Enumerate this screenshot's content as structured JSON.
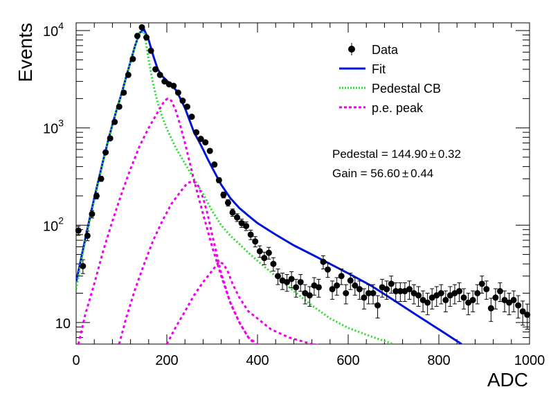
{
  "chart_data": {
    "type": "scatter",
    "xlabel": "ADC",
    "ylabel": "Events",
    "xlim": [
      0,
      1000
    ],
    "ylim": [
      6,
      12000
    ],
    "yscale": "log",
    "grid": false,
    "legend_placement": "top-right",
    "x_ticks": [
      "0",
      "200",
      "400",
      "600",
      "800",
      "1000"
    ],
    "y_ticks": [
      {
        "value": 10,
        "label": "10"
      },
      {
        "value": 100,
        "label": "10",
        "sup": "2"
      },
      {
        "value": 1000,
        "label": "10",
        "sup": "3"
      },
      {
        "value": 10000,
        "label": "10",
        "sup": "4"
      }
    ],
    "legend": [
      {
        "label": "Data",
        "style": "marker",
        "color": "#000000"
      },
      {
        "label": "Fit",
        "style": "solid",
        "color": "#0015d6"
      },
      {
        "label": "Pedestal CB",
        "style": "dotted",
        "color": "#22dd22"
      },
      {
        "label": "p.e. peak",
        "style": "dashed",
        "color": "#ee00ee"
      }
    ],
    "annotations": [
      {
        "text": "Pedestal = 144.90",
        "pm": "±",
        "err": "0.32"
      },
      {
        "text": "Gain = 56.60",
        "pm": "±",
        "err": "0.44"
      }
    ],
    "colors": {
      "data": "#000000",
      "fit": "#0015d6",
      "pedestal": "#22dd22",
      "pe_peak": "#ee00ee"
    },
    "series": [
      {
        "name": "Data",
        "points": [
          [
            5,
            88
          ],
          [
            15,
            38
          ],
          [
            25,
            78
          ],
          [
            35,
            130
          ],
          [
            45,
            200
          ],
          [
            55,
            300
          ],
          [
            65,
            560
          ],
          [
            75,
            780
          ],
          [
            85,
            1150
          ],
          [
            95,
            1650
          ],
          [
            105,
            2300
          ],
          [
            115,
            3500
          ],
          [
            125,
            5100
          ],
          [
            135,
            8800
          ],
          [
            145,
            10800
          ],
          [
            155,
            8500
          ],
          [
            165,
            6200
          ],
          [
            175,
            4000
          ],
          [
            185,
            3500
          ],
          [
            195,
            3000
          ],
          [
            205,
            2800
          ],
          [
            215,
            2700
          ],
          [
            225,
            2300
          ],
          [
            235,
            1900
          ],
          [
            245,
            1650
          ],
          [
            255,
            1300
          ],
          [
            265,
            900
          ],
          [
            275,
            770
          ],
          [
            285,
            710
          ],
          [
            295,
            580
          ],
          [
            305,
            420
          ],
          [
            315,
            290
          ],
          [
            325,
            205
          ],
          [
            335,
            170
          ],
          [
            345,
            135
          ],
          [
            355,
            120
          ],
          [
            365,
            105
          ],
          [
            375,
            98
          ],
          [
            385,
            80
          ],
          [
            395,
            68
          ],
          [
            405,
            54
          ],
          [
            415,
            46
          ],
          [
            425,
            52
          ],
          [
            435,
            40
          ],
          [
            445,
            30
          ],
          [
            455,
            27
          ],
          [
            465,
            26
          ],
          [
            475,
            28
          ],
          [
            485,
            23
          ],
          [
            495,
            26
          ],
          [
            505,
            20
          ],
          [
            515,
            19
          ],
          [
            525,
            24
          ],
          [
            535,
            23
          ],
          [
            545,
            42
          ],
          [
            555,
            35
          ],
          [
            565,
            22
          ],
          [
            575,
            24
          ],
          [
            585,
            30
          ],
          [
            595,
            20
          ],
          [
            605,
            27
          ],
          [
            615,
            24
          ],
          [
            625,
            22
          ],
          [
            635,
            18
          ],
          [
            645,
            20
          ],
          [
            655,
            20
          ],
          [
            665,
            15
          ],
          [
            675,
            23
          ],
          [
            685,
            22
          ],
          [
            695,
            25
          ],
          [
            705,
            21
          ],
          [
            715,
            21
          ],
          [
            725,
            21
          ],
          [
            735,
            22
          ],
          [
            745,
            20
          ],
          [
            755,
            19
          ],
          [
            765,
            17
          ],
          [
            775,
            16
          ],
          [
            785,
            18
          ],
          [
            795,
            19
          ],
          [
            805,
            20
          ],
          [
            815,
            17
          ],
          [
            825,
            19
          ],
          [
            835,
            20
          ],
          [
            845,
            21
          ],
          [
            855,
            18
          ],
          [
            865,
            16
          ],
          [
            875,
            17
          ],
          [
            885,
            20
          ],
          [
            895,
            25
          ],
          [
            905,
            22
          ],
          [
            915,
            14
          ],
          [
            925,
            18
          ],
          [
            935,
            21
          ],
          [
            945,
            17
          ],
          [
            955,
            16
          ],
          [
            965,
            17
          ],
          [
            975,
            15
          ],
          [
            985,
            13
          ],
          [
            995,
            12
          ]
        ]
      },
      {
        "name": "Fit",
        "points": [
          [
            0,
            26
          ],
          [
            10,
            43
          ],
          [
            20,
            72
          ],
          [
            30,
            118
          ],
          [
            40,
            190
          ],
          [
            50,
            300
          ],
          [
            60,
            470
          ],
          [
            70,
            720
          ],
          [
            80,
            1080
          ],
          [
            90,
            1570
          ],
          [
            100,
            2230
          ],
          [
            110,
            3300
          ],
          [
            120,
            4800
          ],
          [
            130,
            7000
          ],
          [
            140,
            9500
          ],
          [
            150,
            10200
          ],
          [
            160,
            8000
          ],
          [
            170,
            5500
          ],
          [
            180,
            4000
          ],
          [
            190,
            3400
          ],
          [
            200,
            3050
          ],
          [
            210,
            2750
          ],
          [
            220,
            2450
          ],
          [
            230,
            2000
          ],
          [
            240,
            1600
          ],
          [
            250,
            1200
          ],
          [
            260,
            900
          ],
          [
            270,
            740
          ],
          [
            280,
            600
          ],
          [
            290,
            480
          ],
          [
            300,
            390
          ],
          [
            320,
            260
          ],
          [
            340,
            190
          ],
          [
            360,
            150
          ],
          [
            380,
            125
          ],
          [
            400,
            105
          ],
          [
            440,
            80
          ],
          [
            480,
            62
          ],
          [
            520,
            50
          ],
          [
            560,
            40
          ],
          [
            600,
            32
          ],
          [
            650,
            24
          ],
          [
            700,
            17
          ],
          [
            750,
            12
          ],
          [
            800,
            8.5
          ],
          [
            850,
            6
          ]
        ]
      },
      {
        "name": "Pedestal CB",
        "points": [
          [
            0,
            22
          ],
          [
            10,
            40
          ],
          [
            20,
            68
          ],
          [
            30,
            112
          ],
          [
            40,
            180
          ],
          [
            50,
            290
          ],
          [
            60,
            460
          ],
          [
            70,
            710
          ],
          [
            80,
            1060
          ],
          [
            90,
            1550
          ],
          [
            100,
            2200
          ],
          [
            110,
            3300
          ],
          [
            120,
            4800
          ],
          [
            130,
            7000
          ],
          [
            140,
            9500
          ],
          [
            150,
            9700
          ],
          [
            160,
            5000
          ],
          [
            170,
            2800
          ],
          [
            180,
            1800
          ],
          [
            190,
            1300
          ],
          [
            200,
            980
          ],
          [
            220,
            620
          ],
          [
            240,
            430
          ],
          [
            260,
            300
          ],
          [
            280,
            210
          ],
          [
            300,
            140
          ],
          [
            320,
            100
          ],
          [
            340,
            78
          ],
          [
            360,
            64
          ],
          [
            380,
            52
          ],
          [
            400,
            43
          ],
          [
            440,
            30
          ],
          [
            480,
            21
          ],
          [
            520,
            15
          ],
          [
            560,
            11
          ],
          [
            600,
            8.8
          ],
          [
            650,
            7.2
          ],
          [
            700,
            6
          ]
        ]
      },
      {
        "name": "p.e. peak",
        "points": [
          [
            5,
            6
          ],
          [
            20,
            12
          ],
          [
            40,
            25
          ],
          [
            60,
            55
          ],
          [
            80,
            110
          ],
          [
            100,
            210
          ],
          [
            120,
            380
          ],
          [
            140,
            650
          ],
          [
            160,
            1000
          ],
          [
            180,
            1450
          ],
          [
            195,
            1900
          ],
          [
            202,
            2000
          ],
          [
            210,
            1900
          ],
          [
            220,
            1500
          ],
          [
            230,
            1050
          ],
          [
            240,
            700
          ],
          [
            250,
            450
          ],
          [
            260,
            290
          ],
          [
            280,
            130
          ],
          [
            300,
            60
          ],
          [
            320,
            30
          ],
          [
            340,
            16
          ],
          [
            360,
            10
          ],
          [
            380,
            7
          ],
          [
            395,
            6
          ]
        ]
      },
      {
        "name": "",
        "points": [
          [
            95,
            6
          ],
          [
            110,
            11
          ],
          [
            130,
            22
          ],
          [
            150,
            40
          ],
          [
            170,
            70
          ],
          [
            190,
            110
          ],
          [
            210,
            165
          ],
          [
            230,
            220
          ],
          [
            245,
            270
          ],
          [
            258,
            285
          ],
          [
            270,
            250
          ],
          [
            280,
            190
          ],
          [
            290,
            130
          ],
          [
            300,
            80
          ],
          [
            310,
            50
          ],
          [
            320,
            32
          ],
          [
            340,
            16
          ],
          [
            360,
            10
          ],
          [
            380,
            7
          ],
          [
            400,
            6
          ]
        ]
      },
      {
        "name": "",
        "points": [
          [
            200,
            6
          ],
          [
            220,
            9
          ],
          [
            240,
            13
          ],
          [
            260,
            19
          ],
          [
            280,
            26
          ],
          [
            300,
            34
          ],
          [
            315,
            42
          ],
          [
            325,
            40
          ],
          [
            335,
            33
          ],
          [
            345,
            25
          ],
          [
            360,
            18
          ],
          [
            380,
            13
          ],
          [
            400,
            11
          ],
          [
            430,
            8.5
          ],
          [
            470,
            7
          ],
          [
            520,
            6
          ],
          [
            545,
            5.8
          ]
        ]
      }
    ]
  }
}
